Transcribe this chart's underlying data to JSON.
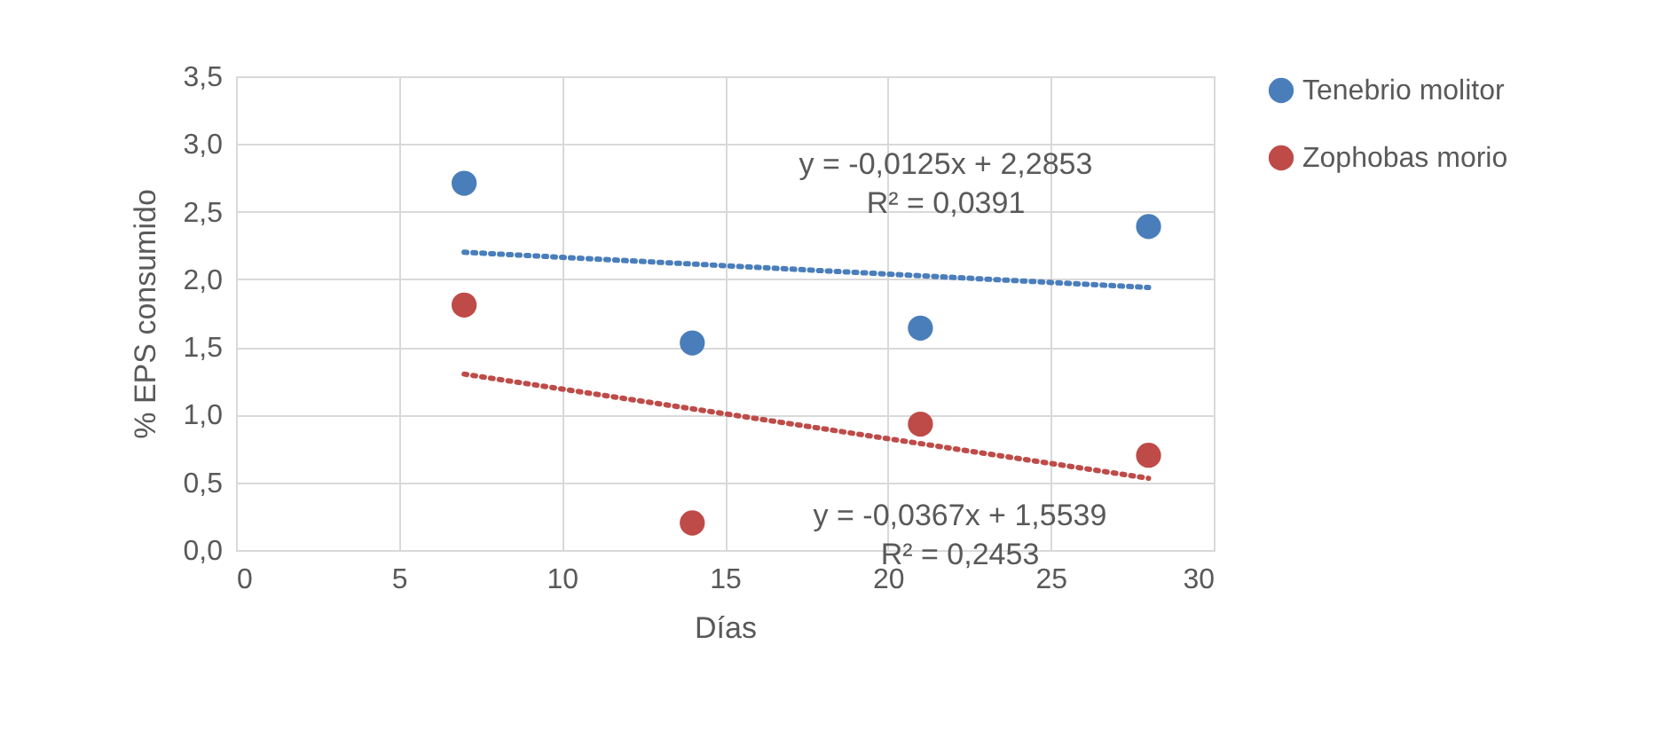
{
  "chart_data": {
    "type": "scatter",
    "xlabel": "Días",
    "ylabel": "% EPS consumido",
    "xlim": [
      0,
      30
    ],
    "xticks": [
      0,
      5,
      10,
      15,
      20,
      25,
      30
    ],
    "ylim": [
      0,
      3.5
    ],
    "yticks": [
      {
        "value": 0,
        "label": "0,0"
      },
      {
        "value": 0.5,
        "label": "0,5"
      },
      {
        "value": 1,
        "label": "1,0"
      },
      {
        "value": 1.5,
        "label": "1,5"
      },
      {
        "value": 2,
        "label": "2,0"
      },
      {
        "value": 2.5,
        "label": "2,5"
      },
      {
        "value": 3,
        "label": "3,0"
      },
      {
        "value": 3.5,
        "label": "3,5"
      }
    ],
    "grid": true,
    "legend": "right",
    "marker": "circle",
    "series": [
      {
        "name": "Tenebrio molitor",
        "color": "#4a7ebb",
        "x": [
          7,
          14,
          21,
          28
        ],
        "values": [
          2.71,
          1.53,
          1.64,
          2.39
        ]
      },
      {
        "name": "Zophobas morio",
        "color": "#be4b48",
        "x": [
          7,
          14,
          21,
          28
        ],
        "values": [
          1.81,
          0.2,
          0.93,
          0.7
        ]
      },
      {
        "type": "line",
        "color": "#4a7ebb",
        "line_style": "dotted",
        "marker": "none",
        "x": [
          7,
          28
        ],
        "values": [
          2.2,
          1.94
        ]
      },
      {
        "type": "line",
        "color": "#be4b48",
        "line_style": "dotted",
        "marker": "none",
        "x": [
          7,
          28
        ],
        "values": [
          1.3,
          0.53
        ]
      }
    ],
    "annotations": [
      "y = -0,0125x + 2,2853",
      "R² = 0,0391",
      "y = -0,0367x + 1,5539",
      "R² = 0,2453"
    ]
  }
}
